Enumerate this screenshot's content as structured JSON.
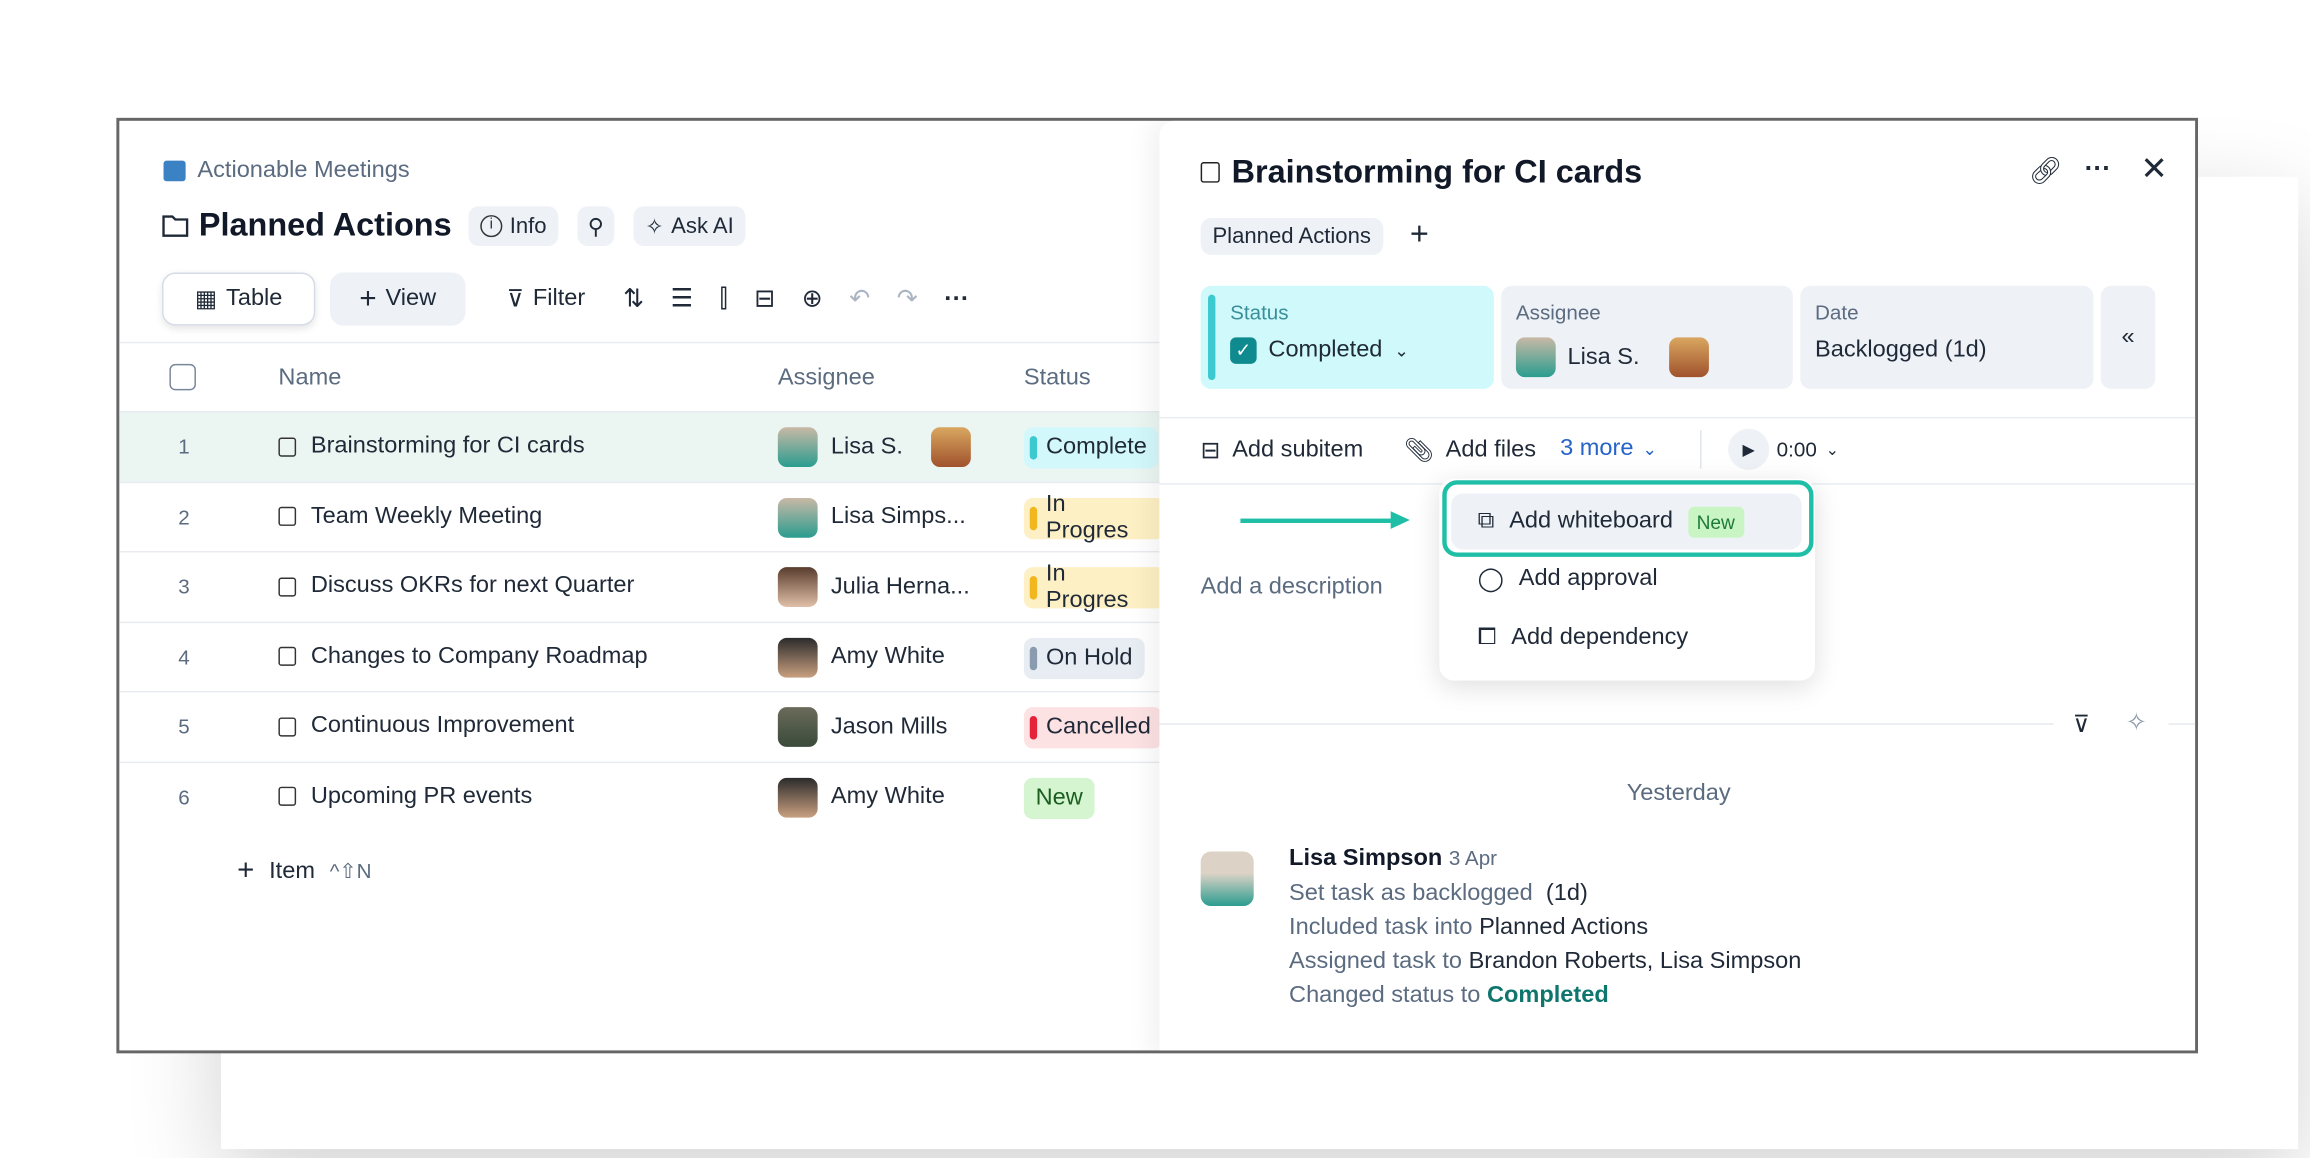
{
  "workspace": "Actionable Meetings",
  "page_title": "Planned Actions",
  "header_buttons": {
    "info": "Info",
    "ask_ai": "Ask AI"
  },
  "toolbar": {
    "table": "Table",
    "view": "View",
    "filter": "Filter"
  },
  "columns": {
    "name": "Name",
    "assignee": "Assignee",
    "status": "Status"
  },
  "rows": [
    {
      "num": "1",
      "name": "Brainstorming for CI cards",
      "assignee": "Lisa S.",
      "second_avatar": true,
      "status": "Complete",
      "status_key": "completed",
      "selected": true
    },
    {
      "num": "2",
      "name": "Team Weekly Meeting",
      "assignee": "Lisa Simps...",
      "status": "In Progres",
      "status_key": "progress"
    },
    {
      "num": "3",
      "name": "Discuss OKRs for next Quarter",
      "assignee": "Julia Herna...",
      "status": "In Progres",
      "status_key": "progress"
    },
    {
      "num": "4",
      "name": "Changes to Company Roadmap",
      "assignee": "Amy White",
      "status": "On Hold",
      "status_key": "hold"
    },
    {
      "num": "5",
      "name": "Continuous Improvement",
      "assignee": "Jason Mills",
      "status": "Cancelled",
      "status_key": "cancelled"
    },
    {
      "num": "6",
      "name": "Upcoming PR events",
      "assignee": "Amy White",
      "status": "New",
      "status_key": "new"
    }
  ],
  "add_item": {
    "label": "Item",
    "shortcut": "^⇧N"
  },
  "status_colors": {
    "completed": {
      "bg": "#d3f8fb",
      "bar": "#3cc9cf"
    },
    "progress": {
      "bg": "#fdf0c4",
      "bar": "#f2b71f"
    },
    "hold": {
      "bg": "#e8edf3",
      "bar": "#8a9bb0"
    },
    "cancelled": {
      "bg": "#fde2e4",
      "bar": "#e5233a"
    },
    "new": {
      "bg": "#d4f5d0",
      "bar": "#d4f5d0"
    }
  },
  "detail": {
    "title": "Brainstorming for CI cards",
    "tag": "Planned Actions",
    "status_label": "Status",
    "status_value": "Completed",
    "assignee_label": "Assignee",
    "assignee_value": "Lisa S.",
    "date_label": "Date",
    "date_value": "Backlogged (1d)",
    "add_subitem": "Add subitem",
    "add_files": "Add files",
    "more": "3 more",
    "timer": "0:00",
    "description_placeholder": "Add a description",
    "menu": [
      {
        "label": "Add whiteboard",
        "badge": "New"
      },
      {
        "label": "Add approval"
      },
      {
        "label": "Add dependency"
      }
    ],
    "day": "Yesterday",
    "activity": {
      "author": "Lisa Simpson",
      "date": "3 Apr",
      "line1": "Set task as backlogged",
      "line1b": "(1d)",
      "line2": "Included task into",
      "line2b": "Planned Actions",
      "line3": "Assigned task to",
      "line3b": "Brandon Roberts, Lisa Simpson",
      "line4": "Changed status to",
      "line4b": "Completed"
    }
  },
  "accent": "#1fbfa7"
}
